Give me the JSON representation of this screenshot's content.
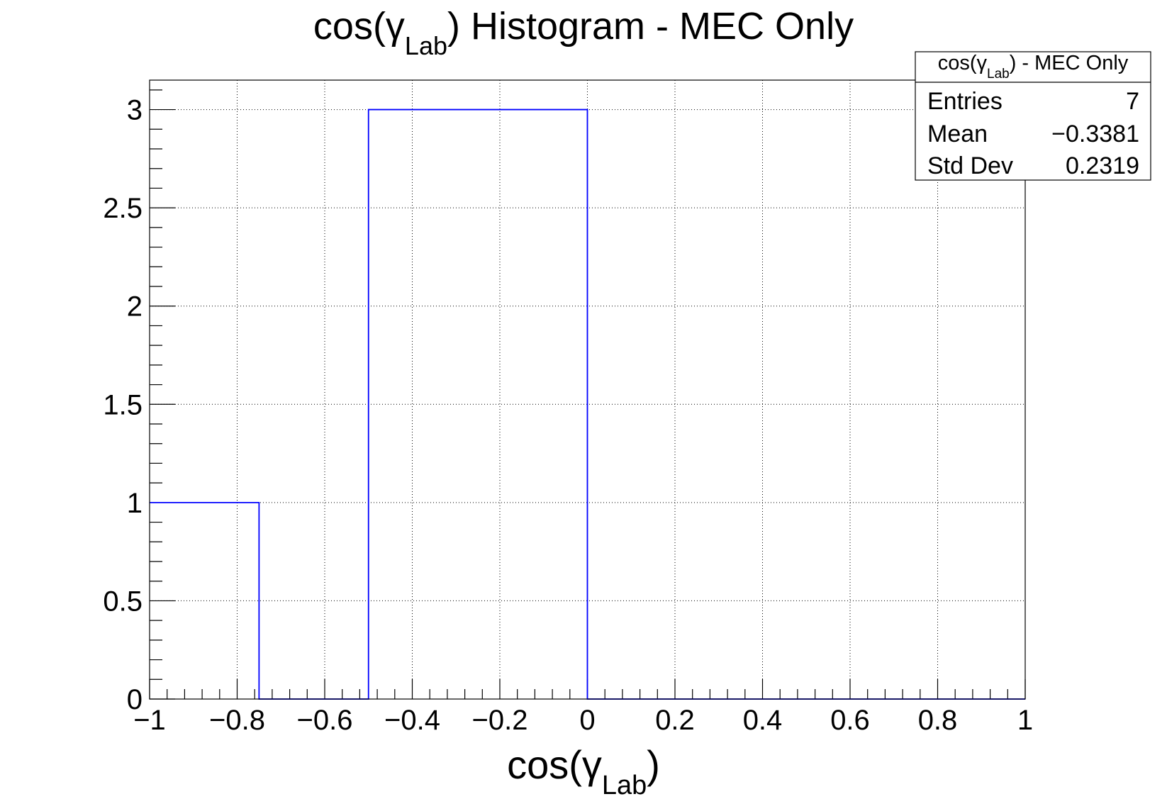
{
  "chart_data": {
    "type": "histogram",
    "title": {
      "prefix": "cos(γ",
      "subscript": "Lab",
      "suffix": ") Histogram - MEC Only"
    },
    "xlabel": {
      "prefix": "cos(γ",
      "subscript": "Lab",
      "suffix": ")"
    },
    "ylabel": "",
    "xlim": [
      -1,
      1
    ],
    "ylim": [
      0,
      3.15
    ],
    "x_ticks": [
      -1,
      -0.8,
      -0.6,
      -0.4,
      -0.2,
      0,
      0.2,
      0.4,
      0.6,
      0.8,
      1
    ],
    "x_tick_labels": [
      "−1",
      "−0.8",
      "−0.6",
      "−0.4",
      "−0.2",
      "0",
      "0.2",
      "0.4",
      "0.6",
      "0.8",
      "1"
    ],
    "y_ticks": [
      0,
      0.5,
      1,
      1.5,
      2,
      2.5,
      3
    ],
    "y_tick_labels": [
      "0",
      "0.5",
      "1",
      "1.5",
      "2",
      "2.5",
      "3"
    ],
    "grid": true,
    "bin_edges": [
      -1,
      -0.75,
      -0.5,
      -0.25,
      0,
      0.25,
      0.5,
      0.75,
      1
    ],
    "series": [
      {
        "values": [
          1,
          0,
          3,
          3,
          0,
          0,
          0,
          0
        ],
        "color": "#0000ff"
      }
    ],
    "stats_box": {
      "title": {
        "prefix": "cos(γ",
        "subscript": "Lab",
        "suffix": ") - MEC Only"
      },
      "rows": [
        {
          "label": "Entries",
          "value": "7"
        },
        {
          "label": "Mean",
          "value": "−0.3381"
        },
        {
          "label": "Std Dev",
          "value": "0.2319"
        }
      ],
      "placement": "top-right"
    }
  }
}
